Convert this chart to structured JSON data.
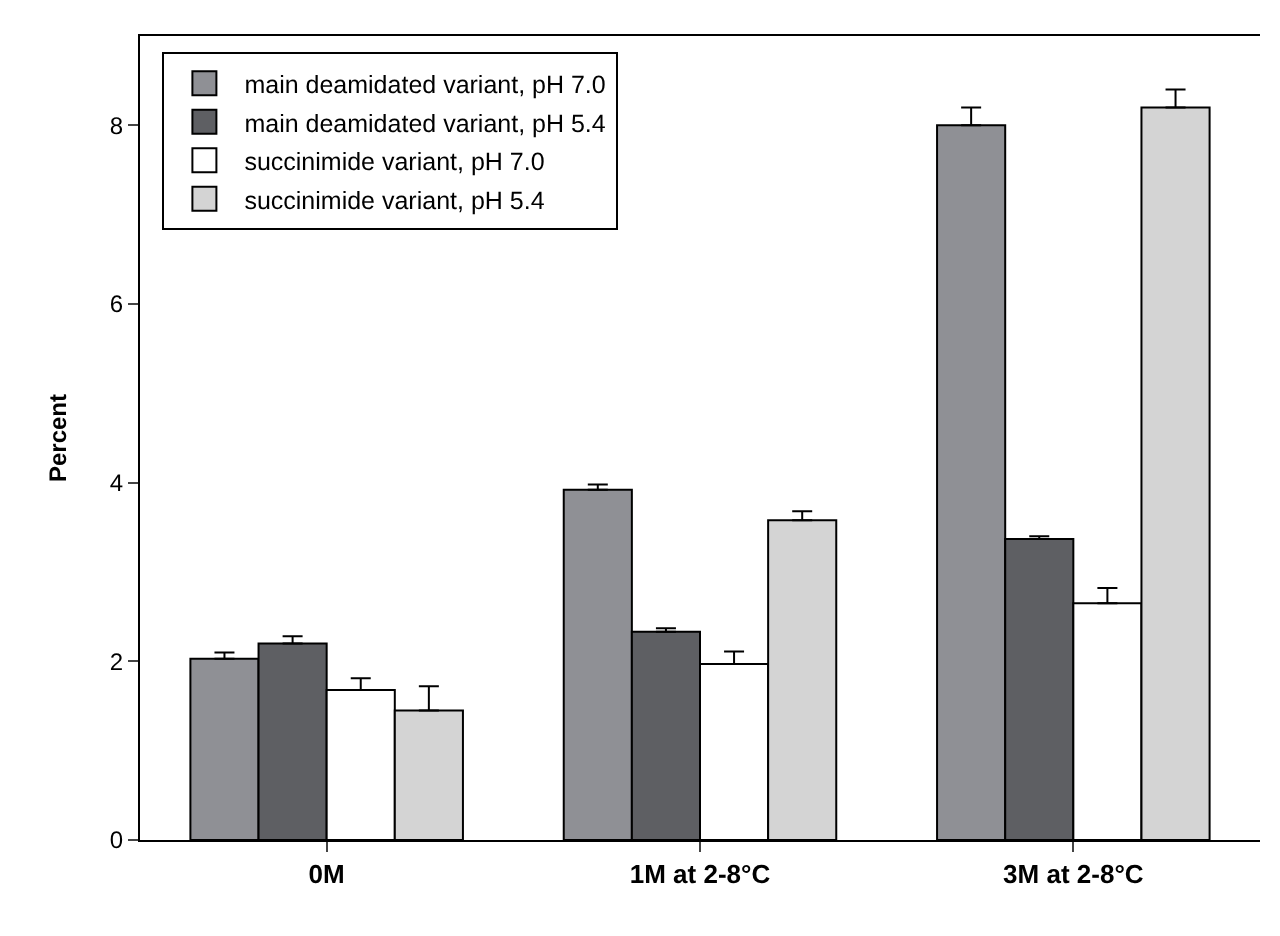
{
  "chart_data": {
    "type": "bar",
    "ylabel": "Percent",
    "categories": [
      "0M",
      "1M at 2-8°C",
      "3M at 2-8°C"
    ],
    "series": [
      {
        "name": "main deamidated variant, pH 7.0",
        "color": "#8f9095",
        "values": [
          2.03,
          3.92,
          8.0
        ],
        "errors": [
          0.07,
          0.06,
          0.2
        ]
      },
      {
        "name": "main deamidated variant, pH 5.4",
        "color": "#5e5f63",
        "values": [
          2.2,
          2.33,
          3.37
        ],
        "errors": [
          0.08,
          0.04,
          0.03
        ]
      },
      {
        "name": "succinimide variant, pH 7.0",
        "color": "#ffffff",
        "values": [
          1.68,
          1.97,
          2.65
        ],
        "errors": [
          0.13,
          0.14,
          0.17
        ]
      },
      {
        "name": "succinimide variant, pH 5.4",
        "color": "#d4d4d4",
        "values": [
          1.45,
          3.58,
          8.2
        ],
        "errors": [
          0.27,
          0.1,
          0.2
        ]
      }
    ],
    "ylim": [
      0,
      9
    ],
    "yticks": [
      0,
      2,
      4,
      6,
      8
    ],
    "grid": false,
    "legend": "top left"
  }
}
